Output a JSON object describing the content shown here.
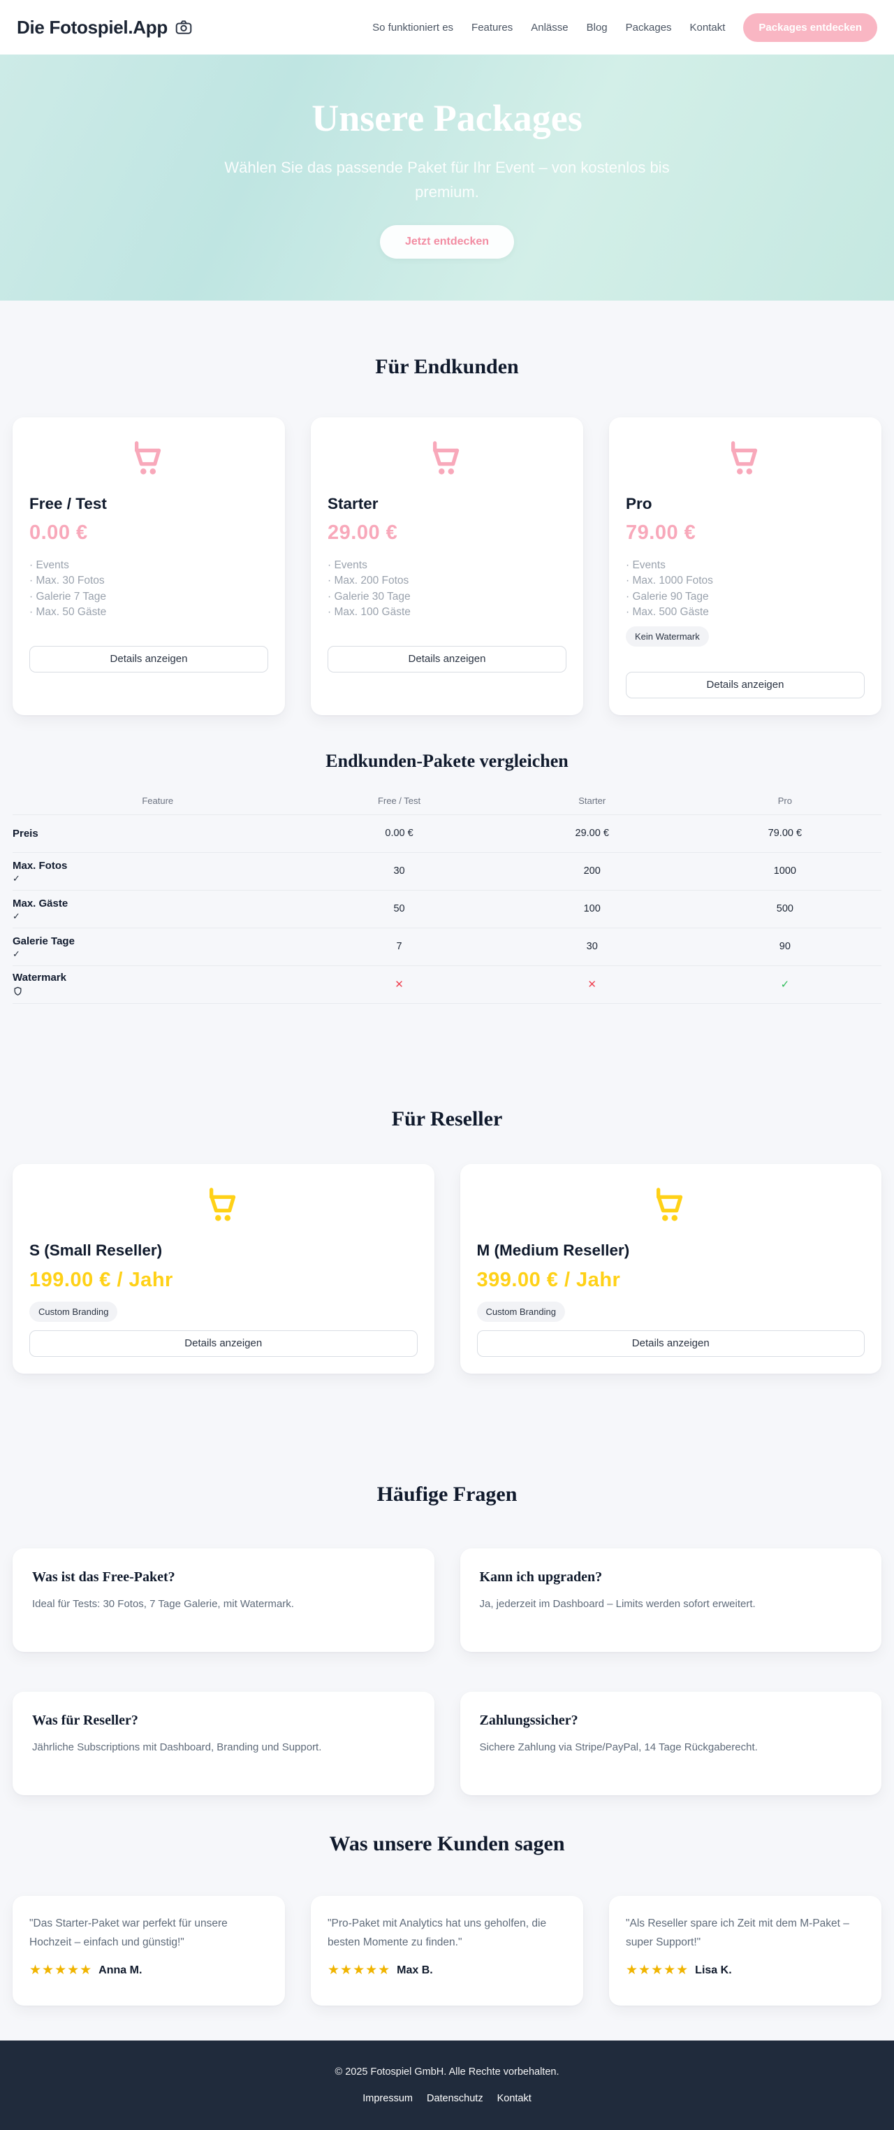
{
  "header": {
    "logo": "Die Fotospiel.App",
    "nav": [
      "So funktioniert es",
      "Features",
      "Anlässe",
      "Blog",
      "Packages",
      "Kontakt"
    ],
    "cta": "Packages entdecken"
  },
  "hero": {
    "title": "Unsere Packages",
    "subtitle": "Wählen Sie das passende Paket für Ihr Event – von kostenlos bis premium.",
    "cta": "Jetzt entdecken"
  },
  "endkunden": {
    "heading": "Für Endkunden",
    "details_label": "Details anzeigen",
    "packages": [
      {
        "name": "Free / Test",
        "price": "0.00 €",
        "features": [
          "Events",
          "Max. 30 Fotos",
          "Galerie 7 Tage",
          "Max. 50 Gäste"
        ]
      },
      {
        "name": "Starter",
        "price": "29.00 €",
        "features": [
          "Events",
          "Max. 200 Fotos",
          "Galerie 30 Tage",
          "Max. 100 Gäste"
        ]
      },
      {
        "name": "Pro",
        "price": "79.00 €",
        "features": [
          "Events",
          "Max. 1000 Fotos",
          "Galerie 90 Tage",
          "Max. 500 Gäste"
        ],
        "badge": "Kein Watermark"
      }
    ]
  },
  "comparison": {
    "heading": "Endkunden-Pakete vergleichen",
    "columns": [
      "Feature",
      "Free / Test",
      "Starter",
      "Pro"
    ],
    "rows": [
      {
        "label": "Preis",
        "values": [
          "0.00 €",
          "29.00 €",
          "79.00 €"
        ]
      },
      {
        "label": "Max. Fotos",
        "icon": "check",
        "values": [
          "30",
          "200",
          "1000"
        ]
      },
      {
        "label": "Max. Gäste",
        "icon": "check",
        "values": [
          "50",
          "100",
          "500"
        ]
      },
      {
        "label": "Galerie Tage",
        "icon": "check",
        "values": [
          "7",
          "30",
          "90"
        ]
      },
      {
        "label": "Watermark",
        "icon": "shield",
        "values": [
          "cross",
          "cross",
          "check"
        ]
      }
    ]
  },
  "reseller": {
    "heading": "Für Reseller",
    "details_label": "Details anzeigen",
    "packages": [
      {
        "name": "S (Small Reseller)",
        "price": "199.00 € / Jahr",
        "badge": "Custom Branding"
      },
      {
        "name": "M (Medium Reseller)",
        "price": "399.00 € / Jahr",
        "badge": "Custom Branding"
      }
    ]
  },
  "faq": {
    "heading": "Häufige Fragen",
    "items": [
      {
        "q": "Was ist das Free-Paket?",
        "a": "Ideal für Tests: 30 Fotos, 7 Tage Galerie, mit Watermark."
      },
      {
        "q": "Kann ich upgraden?",
        "a": "Ja, jederzeit im Dashboard – Limits werden sofort erweitert."
      },
      {
        "q": "Was für Reseller?",
        "a": "Jährliche Subscriptions mit Dashboard, Branding und Support."
      },
      {
        "q": "Zahlungssicher?",
        "a": "Sichere Zahlung via Stripe/PayPal, 14 Tage Rückgaberecht."
      }
    ]
  },
  "testimonials": {
    "heading": "Was unsere Kunden sagen",
    "items": [
      {
        "quote": "\"Das Starter-Paket war perfekt für unsere Hochzeit – einfach und günstig!\"",
        "stars": "★★★★★",
        "name": "Anna M."
      },
      {
        "quote": "\"Pro-Paket mit Analytics hat uns geholfen, die besten Momente zu finden.\"",
        "stars": "★★★★★",
        "name": "Max B."
      },
      {
        "quote": "\"Als Reseller spare ich Zeit mit dem M-Paket – super Support!\"",
        "stars": "★★★★★",
        "name": "Lisa K."
      }
    ]
  },
  "footer": {
    "copyright": "© 2025 Fotospiel GmbH. Alle Rechte vorbehalten.",
    "links": [
      "Impressum",
      "Datenschutz",
      "Kontakt"
    ]
  },
  "colors": {
    "accent_pink": "#f8a8ba",
    "cta_pink": "#f9b6c3",
    "accent_yellow": "#ffd117",
    "star_gold": "#f0b400",
    "cross_red": "#ef4453",
    "check_green": "#2ebd59",
    "heading_dark": "#101a2c",
    "hero_mint_from": "#cdebe7",
    "hero_mint_to": "#c5e8e1",
    "footer_bg": "#202b3c"
  }
}
